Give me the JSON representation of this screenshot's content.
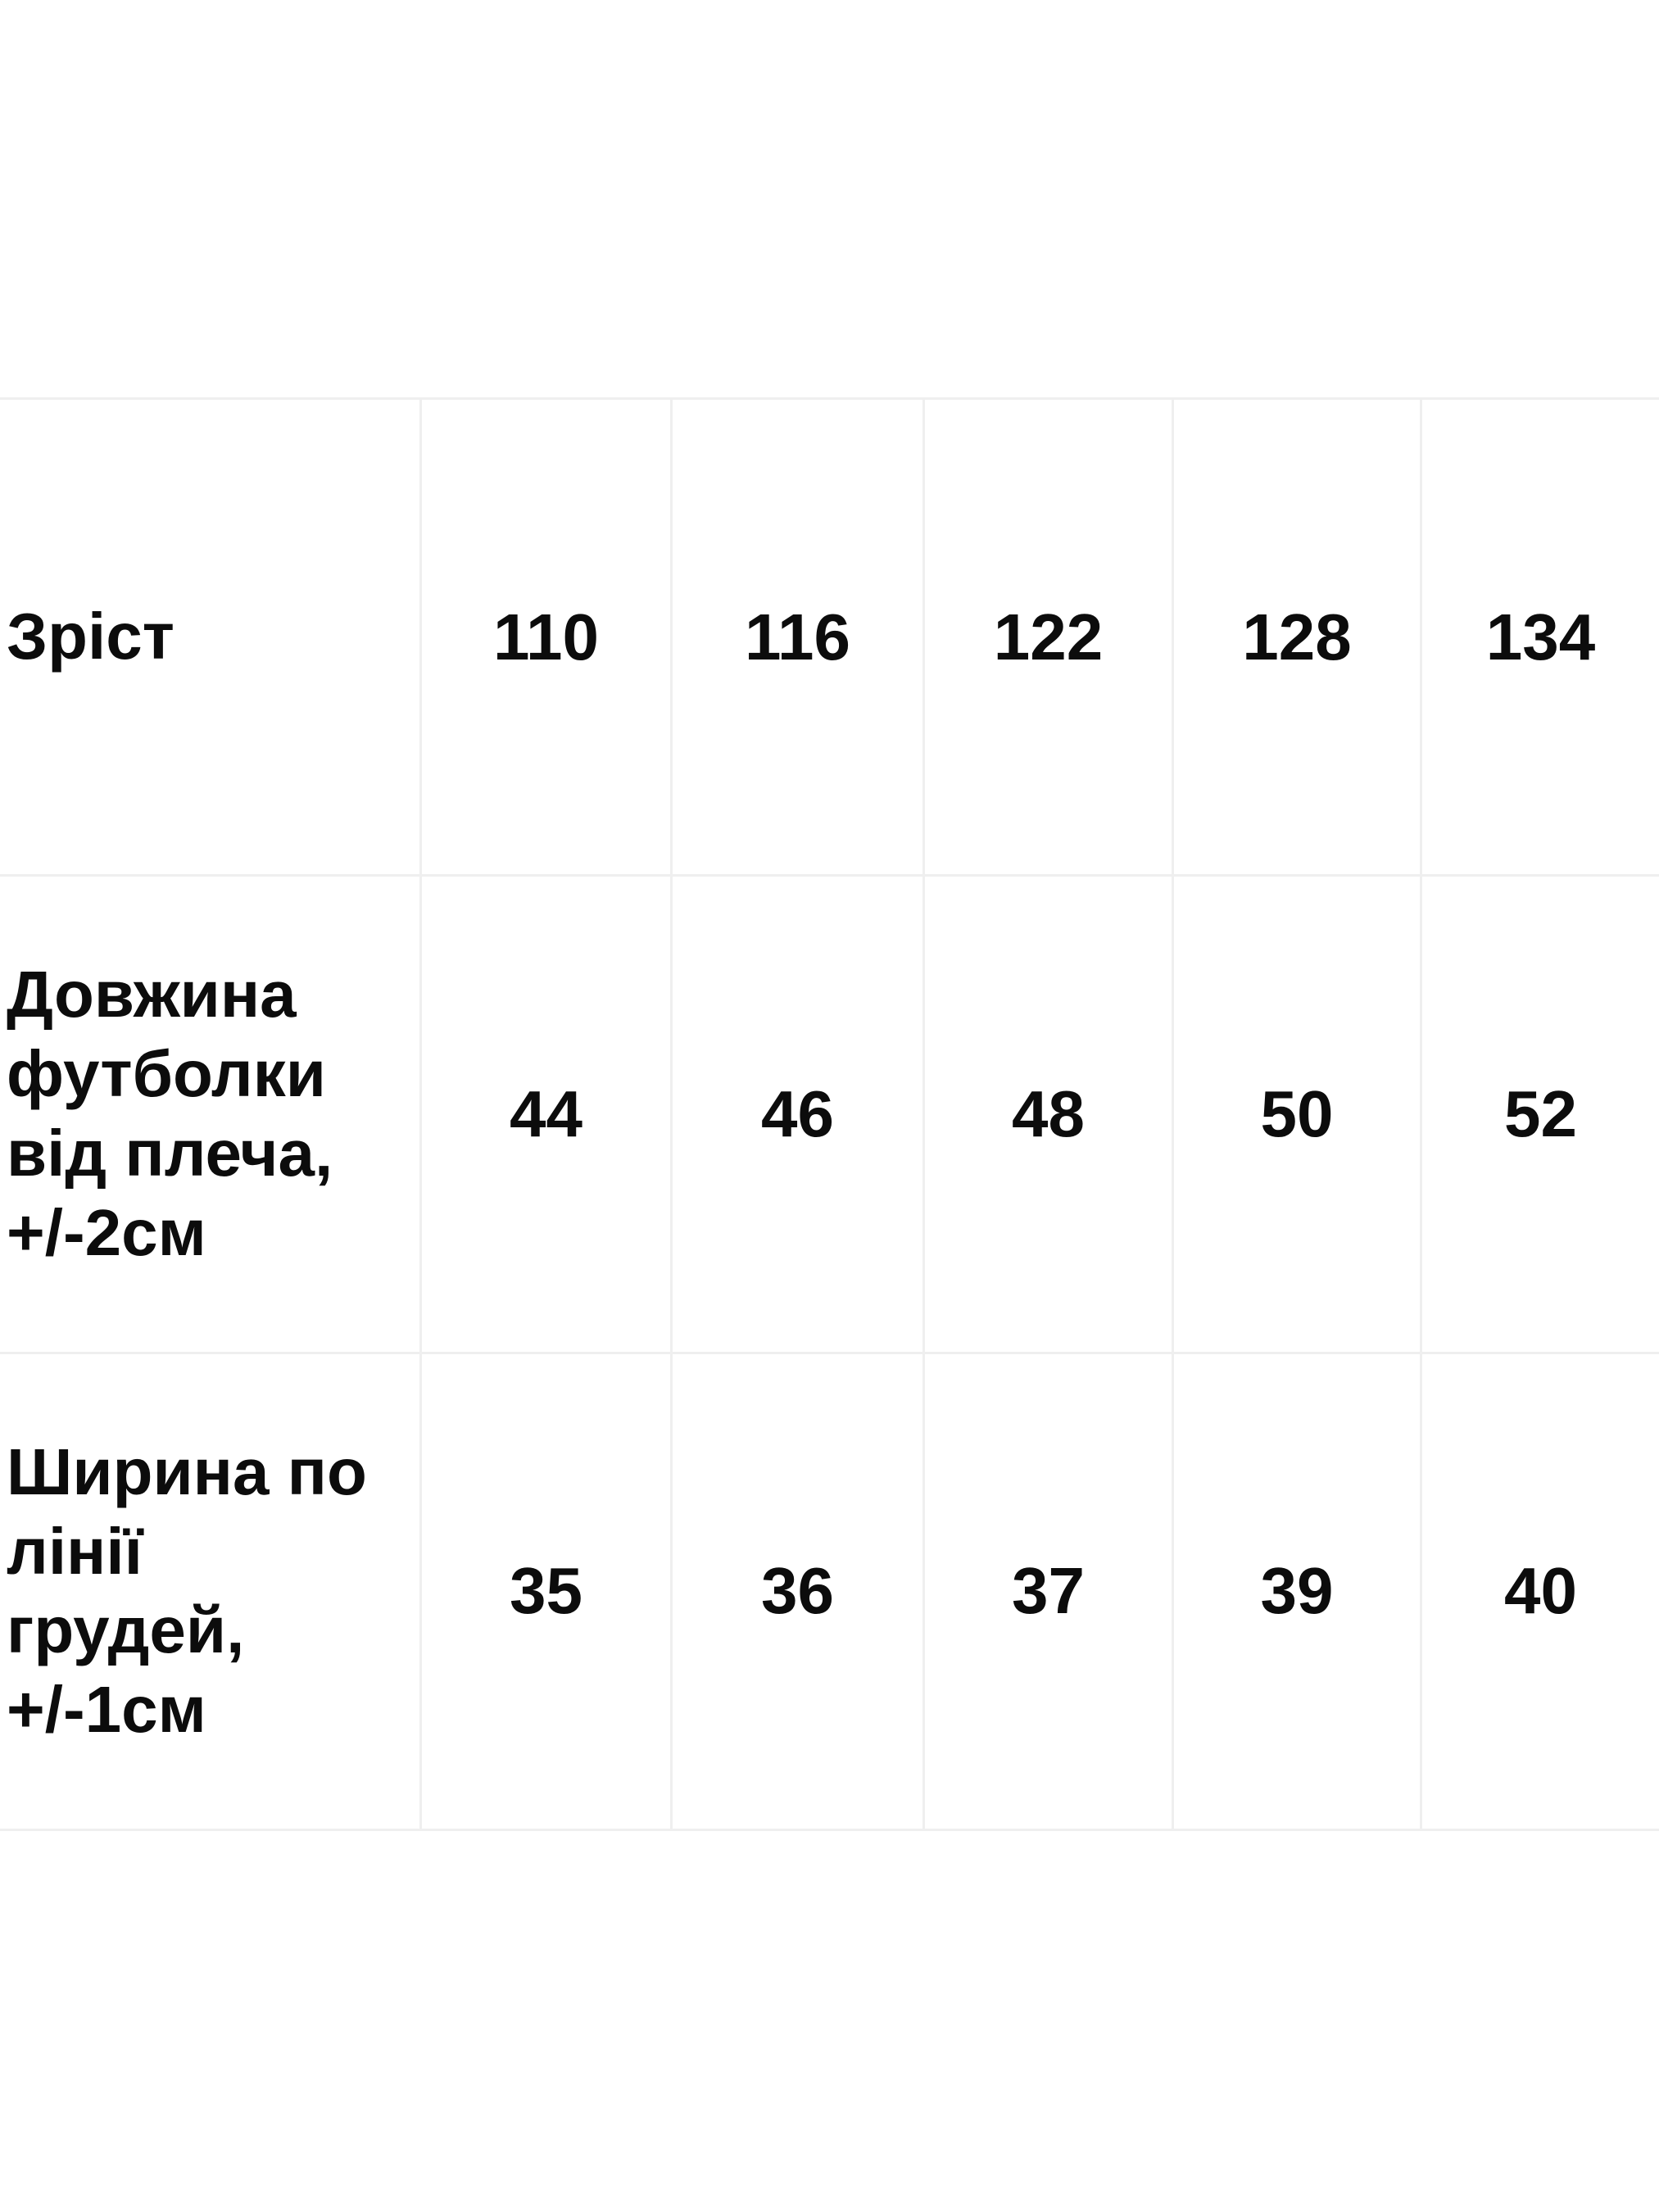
{
  "table": {
    "grid_color": "#efefef",
    "text_color": "#0c0c0c",
    "rows": [
      {
        "label": "Зріст",
        "values": [
          "110",
          "116",
          "122",
          "128",
          "134"
        ]
      },
      {
        "label": "Довжина\nфутболки\nвід плеча,\n+/-2см",
        "values": [
          "44",
          "46",
          "48",
          "50",
          "52"
        ]
      },
      {
        "label": "Ширина по\nлінії\nгрудей,\n+/-1см",
        "values": [
          "35",
          "36",
          "37",
          "39",
          "40"
        ]
      }
    ]
  },
  "chart_data": {
    "type": "table",
    "header_row": [
      "Зріст",
      "110",
      "116",
      "122",
      "128",
      "134"
    ],
    "rows": [
      {
        "label": "Довжина футболки від плеча, +/-2см",
        "values": [
          44,
          46,
          48,
          50,
          52
        ]
      },
      {
        "label": "Ширина по лінії грудей, +/-1см",
        "values": [
          35,
          36,
          37,
          39,
          40
        ]
      }
    ],
    "title": "",
    "layout": {
      "grid": true,
      "label_column_align": "left",
      "value_align": "center"
    }
  }
}
